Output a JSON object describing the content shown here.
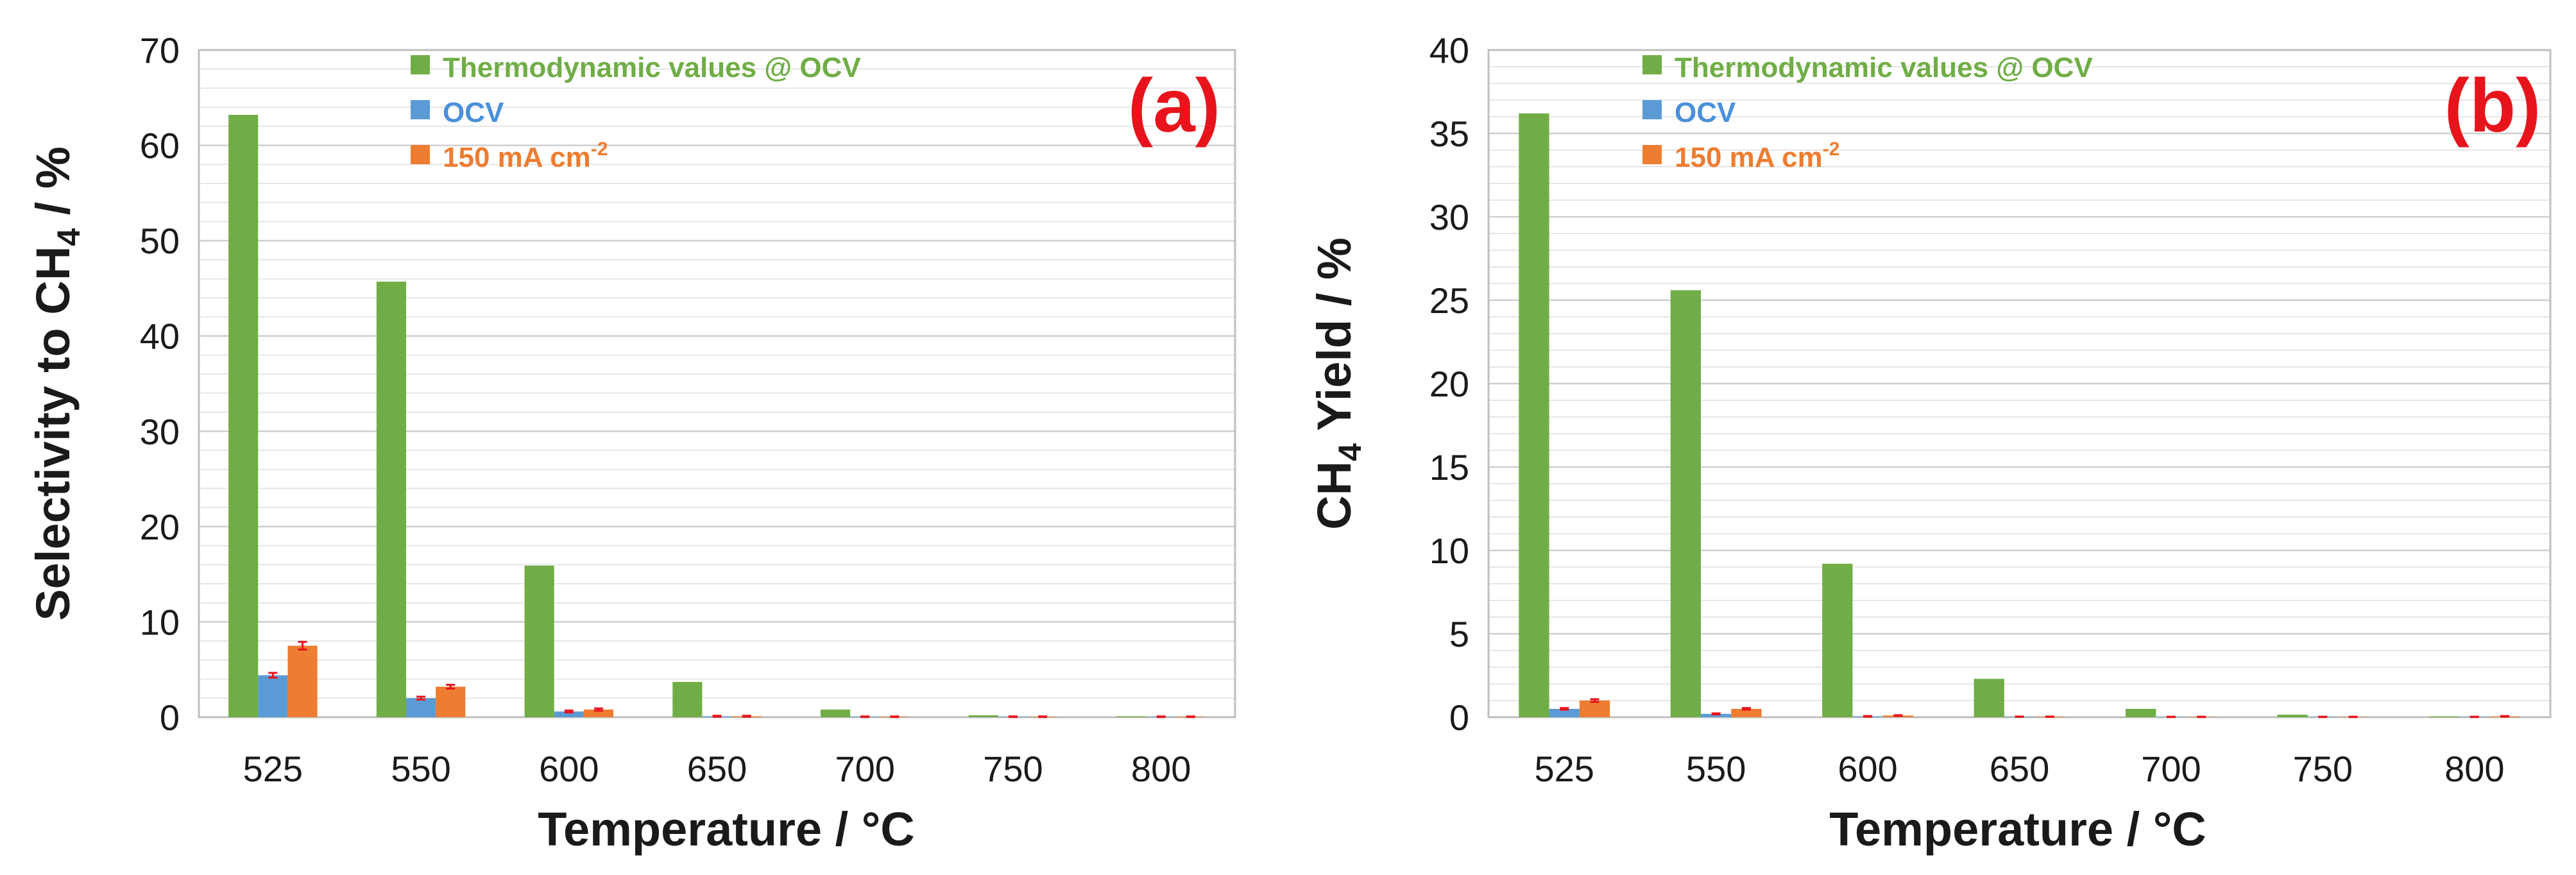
{
  "chart_data": [
    {
      "type": "bar",
      "panel_label": "(a)",
      "xlabel": "Temperature / °C",
      "ylabel": {
        "main": "Selectivity to CH",
        "sub": "4",
        "tail": " / %"
      },
      "ylim": [
        0,
        70
      ],
      "yticks": [
        0,
        10,
        20,
        30,
        40,
        50,
        60,
        70
      ],
      "categories": [
        "525",
        "550",
        "600",
        "650",
        "700",
        "750",
        "800"
      ],
      "grid": true,
      "legend_position": "top-center",
      "series": [
        {
          "name": "Thermodynamic values @ OCV",
          "color": "#70ad47",
          "label_color": "#70ad47",
          "values": [
            63.2,
            45.7,
            15.9,
            3.7,
            0.8,
            0.2,
            0.1
          ]
        },
        {
          "name": "OCV",
          "color": "#5b9bd5",
          "label_color": "#4a90d9",
          "values": [
            4.4,
            2.0,
            0.6,
            0.1,
            0.05,
            0.05,
            0.05
          ],
          "errors": [
            0.25,
            0.15,
            0.1,
            0.05,
            0.03,
            0.03,
            0.03
          ]
        },
        {
          "name": "150 mA cm",
          "sup": "-2",
          "color": "#ed7d31",
          "label_color": "#ed7d31",
          "values": [
            7.5,
            3.2,
            0.8,
            0.1,
            0.05,
            0.05,
            0.05
          ],
          "errors": [
            0.4,
            0.2,
            0.12,
            0.05,
            0.03,
            0.03,
            0.03
          ]
        }
      ]
    },
    {
      "type": "bar",
      "panel_label": "(b)",
      "xlabel": "Temperature / °C",
      "ylabel": {
        "main": "CH",
        "sub": "4",
        "tail": " Yield / %"
      },
      "ylim": [
        0,
        40
      ],
      "yticks": [
        0,
        5,
        10,
        15,
        20,
        25,
        30,
        35,
        40
      ],
      "categories": [
        "525",
        "550",
        "600",
        "650",
        "700",
        "750",
        "800"
      ],
      "grid": true,
      "legend_position": "top-center",
      "series": [
        {
          "name": "Thermodynamic values @ OCV",
          "color": "#70ad47",
          "label_color": "#70ad47",
          "values": [
            36.2,
            25.6,
            9.2,
            2.3,
            0.5,
            0.15,
            0.05
          ]
        },
        {
          "name": "OCV",
          "color": "#5b9bd5",
          "label_color": "#4a90d9",
          "values": [
            0.5,
            0.2,
            0.05,
            0.03,
            0.02,
            0.02,
            0.02
          ],
          "errors": [
            0.05,
            0.03,
            0.02,
            0.01,
            0.01,
            0.01,
            0.01
          ]
        },
        {
          "name": "150 mA cm",
          "sup": "-2",
          "color": "#ed7d31",
          "label_color": "#ed7d31",
          "values": [
            1.0,
            0.5,
            0.1,
            0.03,
            0.02,
            0.02,
            0.05
          ],
          "errors": [
            0.08,
            0.05,
            0.02,
            0.01,
            0.01,
            0.01,
            0.02
          ]
        }
      ]
    }
  ]
}
